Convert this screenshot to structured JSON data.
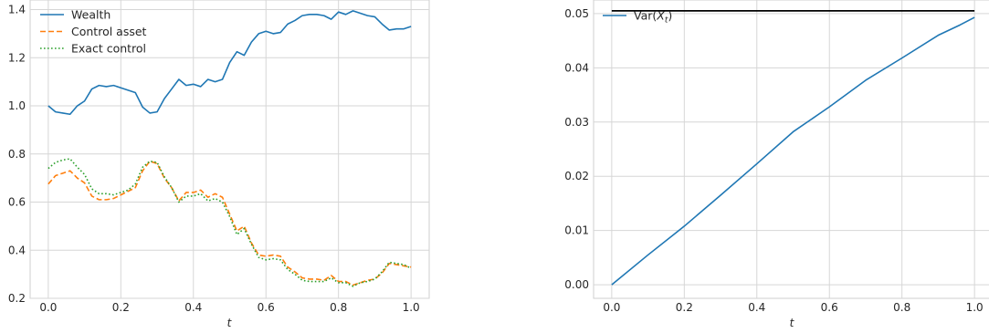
{
  "chart_data": [
    {
      "type": "line",
      "xlabel": "t",
      "ylabel": "",
      "xlim": [
        -0.05,
        1.05
      ],
      "ylim": [
        0.2,
        1.44
      ],
      "xticks": [
        0.0,
        0.2,
        0.4,
        0.6,
        0.8,
        1.0
      ],
      "yticks": [
        0.2,
        0.4,
        0.6,
        0.8,
        1.0,
        1.2,
        1.4
      ],
      "tick_labels_x": [
        "0.0",
        "0.2",
        "0.4",
        "0.6",
        "0.8",
        "1.0"
      ],
      "tick_labels_y": [
        "0.2",
        "0.4",
        "0.6",
        "0.8",
        "1.0",
        "1.2",
        "1.4"
      ],
      "grid": true,
      "legend_position": "top-left",
      "x": [
        0.0,
        0.02,
        0.04,
        0.06,
        0.08,
        0.1,
        0.12,
        0.14,
        0.16,
        0.18,
        0.2,
        0.22,
        0.24,
        0.26,
        0.28,
        0.3,
        0.32,
        0.34,
        0.36,
        0.38,
        0.4,
        0.42,
        0.44,
        0.46,
        0.48,
        0.5,
        0.52,
        0.54,
        0.56,
        0.58,
        0.6,
        0.62,
        0.64,
        0.66,
        0.68,
        0.7,
        0.72,
        0.74,
        0.76,
        0.78,
        0.8,
        0.82,
        0.84,
        0.86,
        0.88,
        0.9,
        0.92,
        0.94,
        0.96,
        0.98,
        1.0
      ],
      "series": [
        {
          "name": "Wealth",
          "color": "#1f77b4",
          "style": "solid",
          "values": [
            1.0,
            0.975,
            0.97,
            0.965,
            1.0,
            1.02,
            1.07,
            1.085,
            1.08,
            1.085,
            1.075,
            1.065,
            1.055,
            0.995,
            0.97,
            0.975,
            1.03,
            1.07,
            1.11,
            1.085,
            1.09,
            1.08,
            1.11,
            1.1,
            1.11,
            1.18,
            1.225,
            1.21,
            1.265,
            1.3,
            1.31,
            1.3,
            1.305,
            1.34,
            1.355,
            1.375,
            1.38,
            1.38,
            1.375,
            1.36,
            1.39,
            1.38,
            1.395,
            1.385,
            1.375,
            1.37,
            1.34,
            1.315,
            1.32,
            1.32,
            1.33
          ]
        },
        {
          "name": "Control asset",
          "color": "#ff7f0e",
          "style": "dashed",
          "values": [
            0.675,
            0.71,
            0.72,
            0.73,
            0.7,
            0.68,
            0.625,
            0.61,
            0.61,
            0.615,
            0.63,
            0.645,
            0.66,
            0.73,
            0.77,
            0.76,
            0.7,
            0.66,
            0.605,
            0.64,
            0.64,
            0.65,
            0.62,
            0.635,
            0.62,
            0.55,
            0.48,
            0.5,
            0.43,
            0.38,
            0.375,
            0.38,
            0.375,
            0.33,
            0.31,
            0.285,
            0.28,
            0.28,
            0.275,
            0.295,
            0.27,
            0.27,
            0.255,
            0.265,
            0.275,
            0.28,
            0.305,
            0.345,
            0.34,
            0.335,
            0.33
          ]
        },
        {
          "name": "Exact control",
          "color": "#2ca02c",
          "style": "dotted",
          "values": [
            0.74,
            0.765,
            0.775,
            0.78,
            0.745,
            0.715,
            0.655,
            0.635,
            0.635,
            0.63,
            0.64,
            0.65,
            0.675,
            0.745,
            0.77,
            0.765,
            0.705,
            0.66,
            0.6,
            0.625,
            0.625,
            0.635,
            0.605,
            0.615,
            0.6,
            0.54,
            0.465,
            0.49,
            0.425,
            0.37,
            0.36,
            0.365,
            0.36,
            0.32,
            0.3,
            0.275,
            0.27,
            0.27,
            0.27,
            0.285,
            0.265,
            0.265,
            0.25,
            0.265,
            0.27,
            0.28,
            0.31,
            0.35,
            0.345,
            0.34,
            0.325
          ]
        }
      ]
    },
    {
      "type": "line",
      "xlabel": "t",
      "ylabel": "",
      "xlim": [
        -0.05,
        1.05
      ],
      "ylim": [
        -0.0025,
        0.0525
      ],
      "xticks": [
        0.0,
        0.2,
        0.4,
        0.6,
        0.8,
        1.0
      ],
      "yticks": [
        0.0,
        0.01,
        0.02,
        0.03,
        0.04,
        0.05
      ],
      "tick_labels_x": [
        "0.0",
        "0.2",
        "0.4",
        "0.6",
        "0.8",
        "1.0"
      ],
      "tick_labels_y": [
        "0.00",
        "0.01",
        "0.02",
        "0.03",
        "0.04",
        "0.05"
      ],
      "grid": true,
      "legend_position": "top-left",
      "x": [
        0.0,
        0.1,
        0.2,
        0.3,
        0.4,
        0.5,
        0.6,
        0.7,
        0.8,
        0.9,
        0.96,
        1.0
      ],
      "series": [
        {
          "name": "Var(X_t)",
          "color": "#1f77b4",
          "style": "solid",
          "values": [
            0.0,
            0.0055,
            0.0108,
            0.0165,
            0.0223,
            0.0282,
            0.0328,
            0.0377,
            0.0418,
            0.046,
            0.0479,
            0.0493
          ]
        },
        {
          "name": "",
          "color": "#000000",
          "style": "solid",
          "values": [
            0.0505,
            0.0505,
            0.0505,
            0.0505,
            0.0505,
            0.0505,
            0.0505,
            0.0505,
            0.0505,
            0.0505,
            0.0505,
            0.0505
          ]
        }
      ]
    }
  ]
}
